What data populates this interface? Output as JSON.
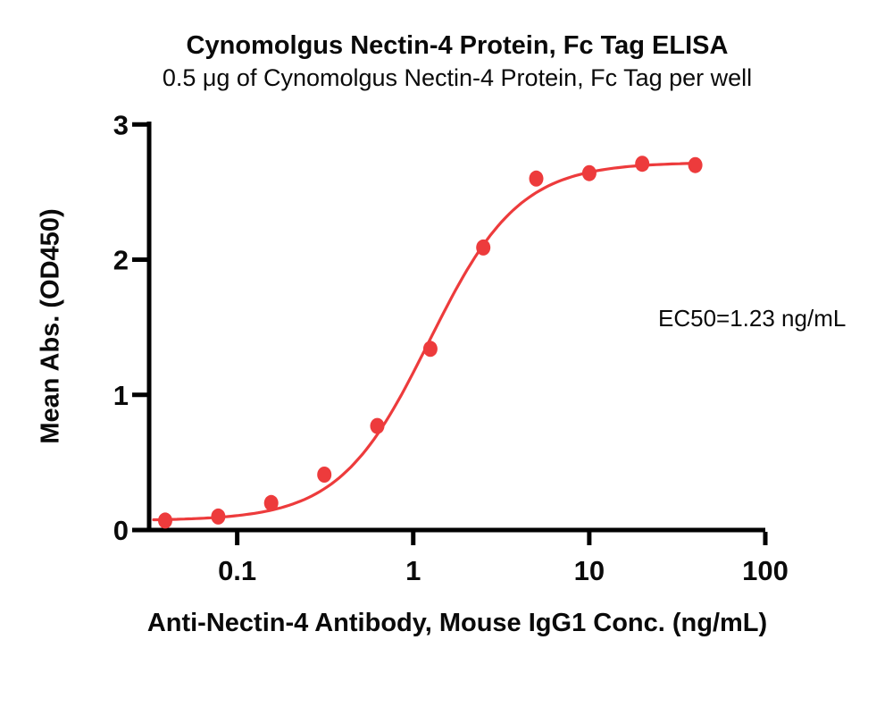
{
  "page": {
    "background": "#ffffff"
  },
  "chart_data": {
    "type": "scatter",
    "title": "Cynomolgus Nectin-4 Protein, Fc Tag ELISA",
    "subtitle": "0.5 μg of Cynomolgus Nectin-4 Protein, Fc Tag per well",
    "xlabel": "Anti-Nectin-4 Antibody, Mouse IgG1 Conc. (ng/mL)",
    "ylabel": "Mean Abs. (OD450)",
    "annotation": "EC50=1.23 ng/mL",
    "x_scale": "log",
    "xlim": [
      0.0316,
      100
    ],
    "ylim": [
      0,
      3
    ],
    "grid": false,
    "legend": false,
    "x_ticks": {
      "values": [
        0.1,
        1,
        10,
        100
      ],
      "labels": [
        "0.1",
        "1",
        "10",
        "100"
      ]
    },
    "y_ticks": {
      "values": [
        0,
        1,
        2,
        3
      ],
      "labels": [
        "0",
        "1",
        "2",
        "3"
      ]
    },
    "series": [
      {
        "x": [
          0.039,
          0.078,
          0.156,
          0.3125,
          0.625,
          1.25,
          2.5,
          5,
          10,
          20,
          40
        ],
        "y": [
          0.07,
          0.1,
          0.2,
          0.41,
          0.77,
          1.34,
          2.09,
          2.6,
          2.64,
          2.71,
          2.7
        ],
        "color": "#ED3B3C",
        "marker": "circle"
      }
    ],
    "fit_curve": {
      "model": "4PL",
      "bottom": 0.07,
      "top": 2.72,
      "ec50": 1.23,
      "hill": 1.7,
      "x_start": 0.0335,
      "x_end": 40
    },
    "ec50_ng_ml": 1.23,
    "axis_color": "#000000",
    "text_color": "#0a0a0a"
  }
}
